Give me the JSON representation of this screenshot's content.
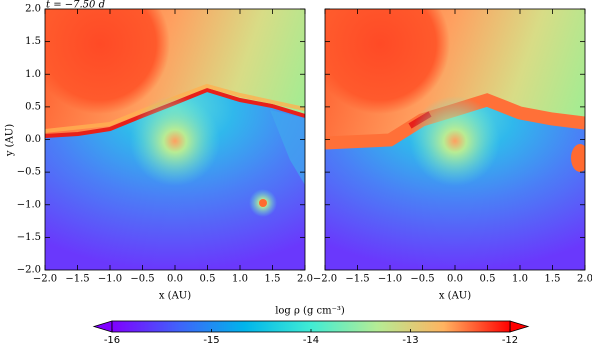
{
  "chart_data": [
    {
      "type": "heatmap",
      "annotation": "t = −7.50 d",
      "xlabel": "x (AU)",
      "ylabel": "y (AU)",
      "xlim": [
        -2,
        2
      ],
      "ylim": [
        -2,
        2
      ],
      "xticks": [
        {
          "value": -2,
          "label": "−2.0"
        },
        {
          "value": -1.5,
          "label": "−1.5"
        },
        {
          "value": -1,
          "label": "−1.0"
        },
        {
          "value": -0.5,
          "label": "−0.5"
        },
        {
          "value": 0,
          "label": "0.0"
        },
        {
          "value": 0.5,
          "label": "0.5"
        },
        {
          "value": 1,
          "label": "1.0"
        },
        {
          "value": 1.5,
          "label": "1.5"
        },
        {
          "value": 2,
          "label": "2.0"
        }
      ],
      "yticks": [
        {
          "value": -2,
          "label": "−2.0"
        },
        {
          "value": -1.5,
          "label": "−1.5"
        },
        {
          "value": -1,
          "label": "−1.0"
        },
        {
          "value": -0.5,
          "label": "−0.5"
        },
        {
          "value": 0,
          "label": "0.0"
        },
        {
          "value": 0.5,
          "label": "0.5"
        },
        {
          "value": 1,
          "label": "1.0"
        },
        {
          "value": 1.5,
          "label": "1.5"
        },
        {
          "value": 2,
          "label": "2.0"
        }
      ]
    },
    {
      "type": "heatmap",
      "xlabel": "x (AU)",
      "xlim": [
        -2,
        2
      ],
      "ylim": [
        -2,
        2
      ],
      "xticks": [
        {
          "value": -2,
          "label": "−2.0"
        },
        {
          "value": -1.5,
          "label": "−1.5"
        },
        {
          "value": -1,
          "label": "−1.0"
        },
        {
          "value": -0.5,
          "label": "−0.5"
        },
        {
          "value": 0,
          "label": "0.0"
        },
        {
          "value": 0.5,
          "label": "0.5"
        },
        {
          "value": 1,
          "label": "1.0"
        },
        {
          "value": 1.5,
          "label": "1.5"
        },
        {
          "value": 2,
          "label": "2.0"
        }
      ]
    }
  ],
  "colorbar": {
    "label": "log ρ (g cm⁻³)",
    "lim": [
      -16,
      -12
    ],
    "ticks": [
      -16,
      -15,
      -14,
      -13,
      -12
    ],
    "colormap": [
      "#8000ff",
      "#4062fa",
      "#00b5eb",
      "#40ecd4",
      "#b5ec95",
      "#ffb360",
      "#ff0000"
    ]
  }
}
